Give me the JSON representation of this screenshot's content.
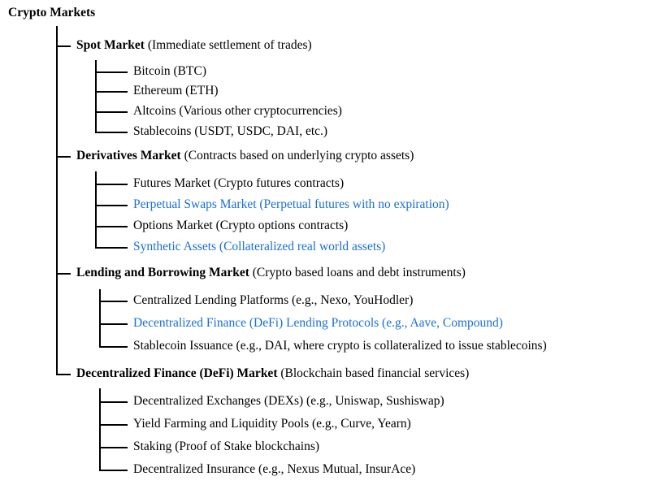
{
  "root": {
    "title": "Crypto Markets"
  },
  "colors": {
    "link": "#1a6fd6",
    "text": "#000000",
    "line": "#000000"
  },
  "categories": [
    {
      "name": "Spot Market",
      "description": "(Immediate settlement of trades)",
      "items": [
        {
          "label": "Bitcoin (BTC)",
          "highlight": false
        },
        {
          "label": "Ethereum (ETH)",
          "highlight": false
        },
        {
          "label": "Altcoins (Various other cryptocurrencies)",
          "highlight": false
        },
        {
          "label": "Stablecoins (USDT, USDC, DAI, etc.)",
          "highlight": false
        }
      ]
    },
    {
      "name": "Derivatives Market",
      "description": "(Contracts based on underlying crypto assets)",
      "items": [
        {
          "label": "Futures Market (Crypto futures contracts)",
          "highlight": false
        },
        {
          "label": "Perpetual Swaps Market (Perpetual futures with no expiration)",
          "highlight": true
        },
        {
          "label": "Options Market (Crypto options contracts)",
          "highlight": false
        },
        {
          "label": "Synthetic Assets (Collateralized real world assets)",
          "highlight": true
        }
      ]
    },
    {
      "name": "Lending and Borrowing Market",
      "description": "(Crypto based loans and debt instruments)",
      "items": [
        {
          "label": "Centralized Lending Platforms (e.g., Nexo, YouHodler)",
          "highlight": false
        },
        {
          "label": "Decentralized Finance (DeFi) Lending Protocols (e.g., Aave, Compound)",
          "highlight": true
        },
        {
          "label": "Stablecoin Issuance (e.g., DAI, where crypto is collateralized to issue stablecoins)",
          "highlight": false
        }
      ]
    },
    {
      "name": "Decentralized Finance (DeFi) Market",
      "description": "(Blockchain based financial services)",
      "items": [
        {
          "label": "Decentralized Exchanges (DEXs) (e.g., Uniswap, Sushiswap)",
          "highlight": false
        },
        {
          "label": "Yield Farming and Liquidity Pools (e.g., Curve, Yearn)",
          "highlight": false
        },
        {
          "label": "Staking (Proof of Stake blockchains)",
          "highlight": false
        },
        {
          "label": "Decentralized Insurance (e.g., Nexus Mutual, InsurAce)",
          "highlight": false
        }
      ]
    }
  ]
}
